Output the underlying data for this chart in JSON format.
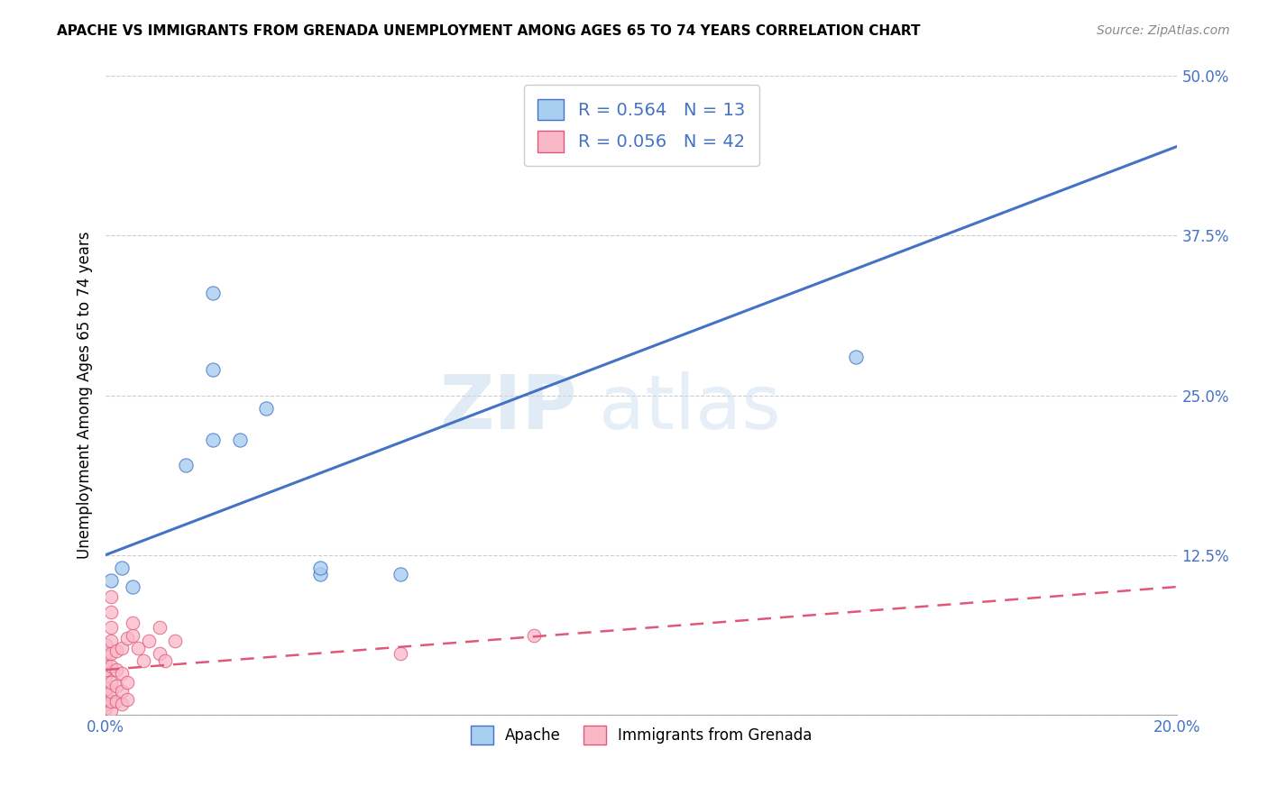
{
  "title": "APACHE VS IMMIGRANTS FROM GRENADA UNEMPLOYMENT AMONG AGES 65 TO 74 YEARS CORRELATION CHART",
  "source": "Source: ZipAtlas.com",
  "ylabel": "Unemployment Among Ages 65 to 74 years",
  "xlim": [
    0,
    0.2
  ],
  "ylim": [
    0,
    0.5
  ],
  "xticks": [
    0.0,
    0.05,
    0.1,
    0.15,
    0.2
  ],
  "yticks": [
    0.0,
    0.125,
    0.25,
    0.375,
    0.5
  ],
  "xtick_labels": [
    "0.0%",
    "",
    "",
    "",
    "20.0%"
  ],
  "ytick_labels_right": [
    "",
    "12.5%",
    "25.0%",
    "37.5%",
    "50.0%"
  ],
  "apache_R": 0.564,
  "apache_N": 13,
  "grenada_R": 0.056,
  "grenada_N": 42,
  "apache_color": "#A8CEF0",
  "grenada_color": "#F9B8C8",
  "apache_line_color": "#4472C4",
  "grenada_line_color": "#E05878",
  "watermark": "ZIPatlas",
  "apache_points": [
    [
      0.001,
      0.105
    ],
    [
      0.003,
      0.115
    ],
    [
      0.005,
      0.1
    ],
    [
      0.015,
      0.195
    ],
    [
      0.02,
      0.215
    ],
    [
      0.025,
      0.215
    ],
    [
      0.02,
      0.27
    ],
    [
      0.03,
      0.24
    ],
    [
      0.04,
      0.11
    ],
    [
      0.04,
      0.115
    ],
    [
      0.055,
      0.11
    ],
    [
      0.14,
      0.28
    ],
    [
      0.02,
      0.33
    ]
  ],
  "grenada_points": [
    [
      0.0,
      0.005
    ],
    [
      0.0,
      0.008
    ],
    [
      0.0,
      0.012
    ],
    [
      0.0,
      0.016
    ],
    [
      0.0,
      0.02
    ],
    [
      0.0,
      0.03
    ],
    [
      0.0,
      0.035
    ],
    [
      0.0,
      0.042
    ],
    [
      0.0,
      0.048
    ],
    [
      0.0,
      0.055
    ],
    [
      0.001,
      0.003
    ],
    [
      0.001,
      0.01
    ],
    [
      0.001,
      0.018
    ],
    [
      0.001,
      0.025
    ],
    [
      0.001,
      0.038
    ],
    [
      0.001,
      0.048
    ],
    [
      0.001,
      0.058
    ],
    [
      0.001,
      0.068
    ],
    [
      0.001,
      0.08
    ],
    [
      0.001,
      0.092
    ],
    [
      0.002,
      0.01
    ],
    [
      0.002,
      0.022
    ],
    [
      0.002,
      0.035
    ],
    [
      0.002,
      0.05
    ],
    [
      0.003,
      0.008
    ],
    [
      0.003,
      0.018
    ],
    [
      0.003,
      0.032
    ],
    [
      0.003,
      0.052
    ],
    [
      0.004,
      0.012
    ],
    [
      0.004,
      0.025
    ],
    [
      0.004,
      0.06
    ],
    [
      0.005,
      0.062
    ],
    [
      0.005,
      0.072
    ],
    [
      0.006,
      0.052
    ],
    [
      0.007,
      0.042
    ],
    [
      0.008,
      0.058
    ],
    [
      0.01,
      0.048
    ],
    [
      0.01,
      0.068
    ],
    [
      0.011,
      0.042
    ],
    [
      0.013,
      0.058
    ],
    [
      0.055,
      0.048
    ],
    [
      0.08,
      0.062
    ]
  ],
  "background_color": "#FFFFFF",
  "grid_color": "#CCCCCC"
}
